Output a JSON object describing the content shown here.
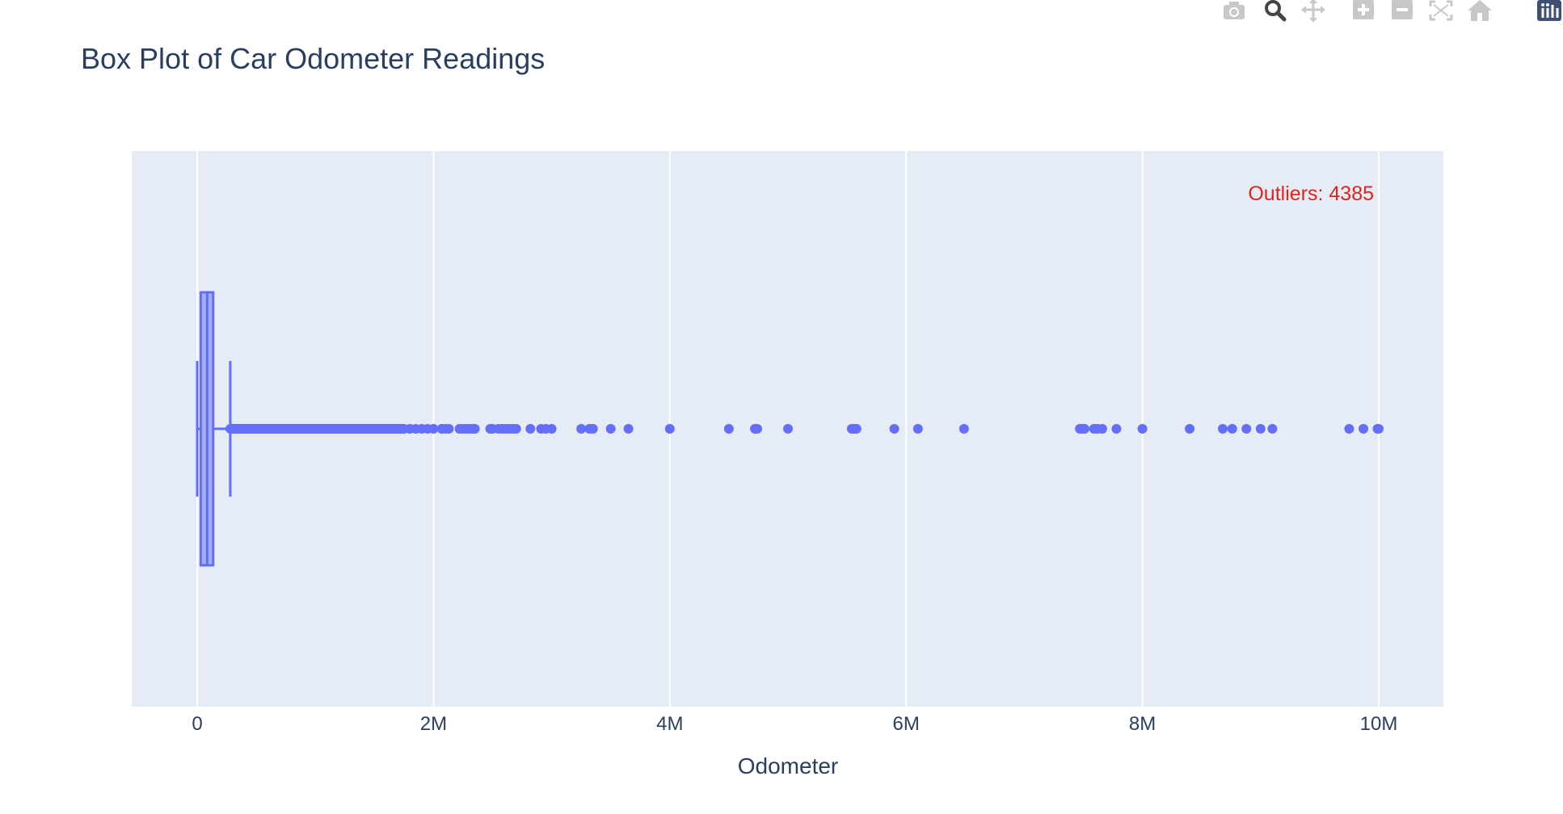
{
  "chart_data": {
    "type": "box",
    "title": "Box Plot of Car Odometer Readings",
    "xlabel": "Odometer",
    "ylabel": "",
    "xlim": [
      -560000,
      10550000
    ],
    "xticks": [
      {
        "value": 0,
        "label": "0"
      },
      {
        "value": 2000000,
        "label": "2M"
      },
      {
        "value": 4000000,
        "label": "4M"
      },
      {
        "value": 6000000,
        "label": "6M"
      },
      {
        "value": 8000000,
        "label": "8M"
      },
      {
        "value": 10000000,
        "label": "10M"
      }
    ],
    "grid": true,
    "box": {
      "lower_whisker": 0,
      "q1": 30000,
      "median": 85000,
      "q3": 135000,
      "upper_whisker": 280000,
      "color": "#636efa"
    },
    "outliers": [
      290000,
      300000,
      320000,
      350000,
      380000,
      400000,
      430000,
      460000,
      500000,
      540000,
      580000,
      620000,
      660000,
      700000,
      740000,
      780000,
      820000,
      860000,
      900000,
      950000,
      1000000,
      1050000,
      1100000,
      1150000,
      1200000,
      1250000,
      1300000,
      1350000,
      1400000,
      1450000,
      1500000,
      1550000,
      1600000,
      1650000,
      1700000,
      1750000,
      1800000,
      1850000,
      1900000,
      1950000,
      2000000,
      2070000,
      2100000,
      2130000,
      2220000,
      2250000,
      2270000,
      2300000,
      2330000,
      2350000,
      2480000,
      2500000,
      2550000,
      2580000,
      2610000,
      2640000,
      2670000,
      2700000,
      2820000,
      2910000,
      2950000,
      3000000,
      3250000,
      3320000,
      3350000,
      3500000,
      3650000,
      4000000,
      4500000,
      4720000,
      4740000,
      5000000,
      5540000,
      5560000,
      5580000,
      5900000,
      6100000,
      6490000,
      7470000,
      7490000,
      7510000,
      7590000,
      7620000,
      7660000,
      7780000,
      8000000,
      8400000,
      8680000,
      8760000,
      8880000,
      9000000,
      9100000,
      9750000,
      9870000,
      9990000,
      10000000
    ],
    "annotation": {
      "text": "Outliers: 4385",
      "color": "#e3231b"
    }
  },
  "modebar": {
    "icons": [
      "camera-icon",
      "zoom-icon",
      "pan-icon",
      "zoom-in-icon",
      "zoom-out-icon",
      "autoscale-icon",
      "home-icon",
      "plotly-logo-icon"
    ]
  }
}
